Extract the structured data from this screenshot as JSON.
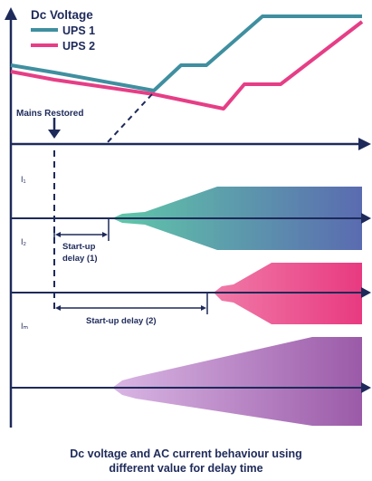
{
  "y_axis_label": "Dc Voltage",
  "legend": [
    {
      "label": "UPS 1",
      "color": "#3f8fa0"
    },
    {
      "label": "UPS 2",
      "color": "#e63e86"
    }
  ],
  "mains_restored_label": "Mains Restored",
  "current_labels": {
    "i1": "I₁",
    "i2": "I₂",
    "im": "Iₘ"
  },
  "delay_1_label_line1": "Start-up",
  "delay_1_label_line2": "delay (1)",
  "delay_2_label": "Start-up delay (2)",
  "caption_line1": "Dc voltage and AC current behaviour using",
  "caption_line2": "different value for delay time",
  "colors": {
    "axis": "#1e2a5a",
    "ups1": "#3f8fa0",
    "ups2": "#e63e86",
    "band1_start": "#5fc9a8",
    "band1_end": "#5a6bb0",
    "band2_start": "#f07aa8",
    "band2_end": "#e83a80",
    "band3_start": "#d9b6e4",
    "band3_end": "#9b5aa8"
  }
}
